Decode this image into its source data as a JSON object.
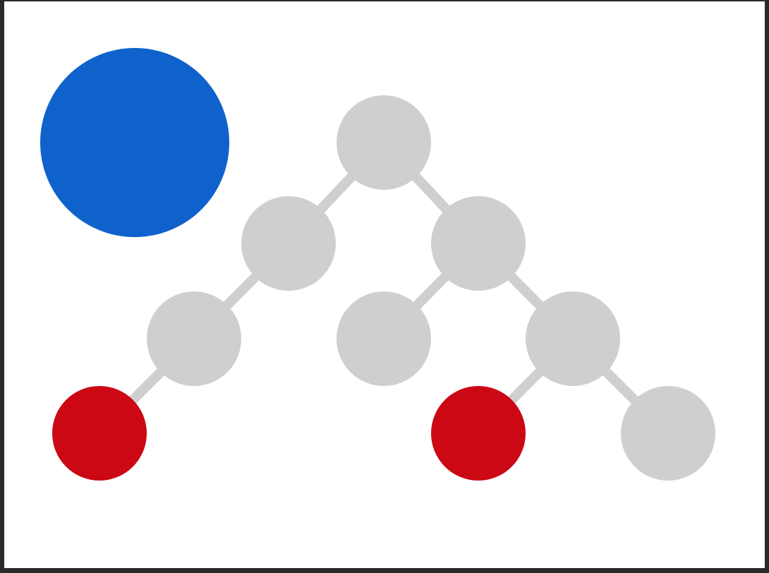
{
  "colors": {
    "background": "#ffffff",
    "frame": "#2a2a2a",
    "edge": "#cfcfcf",
    "node_default": "#cfcfcf",
    "node_highlight": "#cc0814",
    "indicator": "#0f62cc"
  },
  "diagram": {
    "type": "binary-tree",
    "indicator": {
      "shape": "circle",
      "color": "#0f62cc"
    },
    "nodes": [
      {
        "id": "root",
        "state": "default"
      },
      {
        "id": "n-l",
        "state": "default"
      },
      {
        "id": "n-r",
        "state": "default"
      },
      {
        "id": "n-ll",
        "state": "default"
      },
      {
        "id": "n-rl",
        "state": "default"
      },
      {
        "id": "n-rr",
        "state": "default"
      },
      {
        "id": "n-lll",
        "state": "highlight"
      },
      {
        "id": "n-rrl",
        "state": "highlight"
      },
      {
        "id": "n-rrr",
        "state": "default"
      }
    ],
    "edges": [
      [
        "root",
        "n-l"
      ],
      [
        "root",
        "n-r"
      ],
      [
        "n-l",
        "n-ll"
      ],
      [
        "n-r",
        "n-rl"
      ],
      [
        "n-r",
        "n-rr"
      ],
      [
        "n-ll",
        "n-lll"
      ],
      [
        "n-rr",
        "n-rrl"
      ],
      [
        "n-rr",
        "n-rrr"
      ]
    ]
  }
}
